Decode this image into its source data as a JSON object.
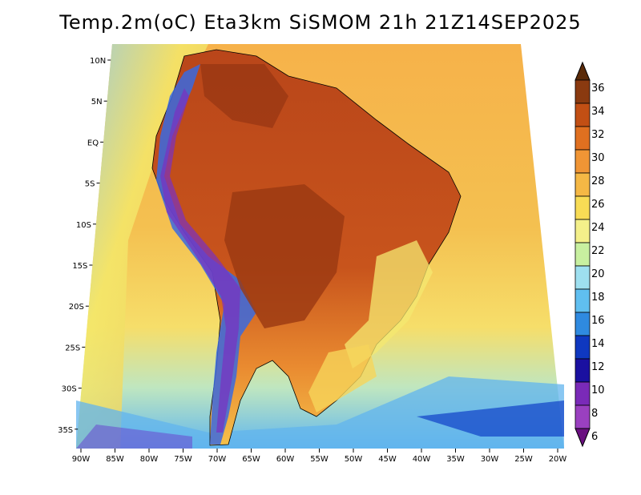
{
  "title": "Temp.2m(oC) Eta3km SiSMOM 21h 21Z14SEP2025",
  "lat_labels": [
    "10N",
    "5N",
    "EQ",
    "5S",
    "10S",
    "15S",
    "20S",
    "25S",
    "30S",
    "35S"
  ],
  "lon_labels": [
    "90W",
    "85W",
    "80W",
    "75W",
    "70W",
    "65W",
    "60W",
    "55W",
    "50W",
    "45W",
    "40W",
    "35W",
    "30W",
    "25W",
    "20W"
  ],
  "colorbar": {
    "labels": [
      "36",
      "34",
      "32",
      "30",
      "28",
      "26",
      "24",
      "22",
      "20",
      "18",
      "16",
      "14",
      "12",
      "10",
      "8",
      "6"
    ],
    "colors": [
      "#5a2a08",
      "#8a3a10",
      "#c24f14",
      "#e07020",
      "#f09535",
      "#f5b845",
      "#f8dc55",
      "#f4f08a",
      "#c8f0a0",
      "#9ee0f0",
      "#60bff0",
      "#2f8ae0",
      "#0f38c0",
      "#1a10a0",
      "#7a2ab8",
      "#9a40c0",
      "#6a1080"
    ]
  },
  "map": {
    "ocean_color": "#f2a640",
    "land_color": "#cc5e1e"
  }
}
